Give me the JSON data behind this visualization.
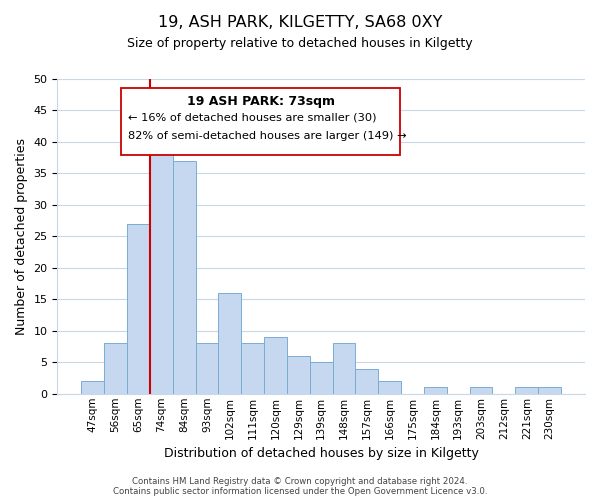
{
  "title": "19, ASH PARK, KILGETTY, SA68 0XY",
  "subtitle": "Size of property relative to detached houses in Kilgetty",
  "xlabel": "Distribution of detached houses by size in Kilgetty",
  "ylabel": "Number of detached properties",
  "footer_line1": "Contains HM Land Registry data © Crown copyright and database right 2024.",
  "footer_line2": "Contains public sector information licensed under the Open Government Licence v3.0.",
  "bin_labels": [
    "47sqm",
    "56sqm",
    "65sqm",
    "74sqm",
    "84sqm",
    "93sqm",
    "102sqm",
    "111sqm",
    "120sqm",
    "129sqm",
    "139sqm",
    "148sqm",
    "157sqm",
    "166sqm",
    "175sqm",
    "184sqm",
    "193sqm",
    "203sqm",
    "212sqm",
    "221sqm",
    "230sqm"
  ],
  "bar_values": [
    2,
    8,
    27,
    40,
    37,
    8,
    16,
    8,
    9,
    6,
    5,
    8,
    4,
    2,
    0,
    1,
    0,
    1,
    0,
    1,
    1
  ],
  "bar_color": "#c5d8f0",
  "bar_edge_color": "#7aadd4",
  "ylim": [
    0,
    50
  ],
  "yticks": [
    0,
    5,
    10,
    15,
    20,
    25,
    30,
    35,
    40,
    45,
    50
  ],
  "vline_color": "#cc0000",
  "vline_index": 2.5,
  "annotation_title": "19 ASH PARK: 73sqm",
  "annotation_line1": "← 16% of detached houses are smaller (30)",
  "annotation_line2": "82% of semi-detached houses are larger (149) →",
  "background_color": "#ffffff",
  "grid_color": "#c8d8e8"
}
